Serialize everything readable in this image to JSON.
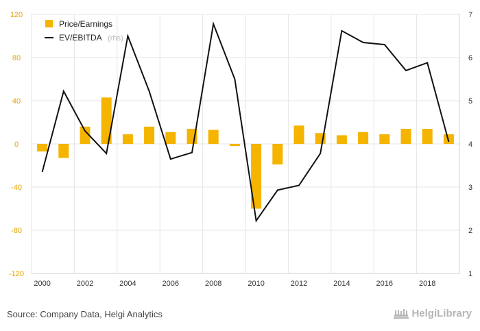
{
  "chart_data": {
    "type": "bar+line",
    "x": [
      2000,
      2001,
      2002,
      2003,
      2004,
      2005,
      2006,
      2007,
      2008,
      2009,
      2010,
      2011,
      2012,
      2013,
      2014,
      2015,
      2016,
      2017,
      2018,
      2019
    ],
    "x_tick_labels": [
      "2000",
      "2002",
      "2004",
      "2006",
      "2008",
      "2010",
      "2012",
      "2014",
      "2016",
      "2018"
    ],
    "series": [
      {
        "name": "Price/Earnings",
        "type": "bar",
        "axis": "left",
        "color": "#f5b400",
        "values": [
          -7,
          -13,
          16,
          43,
          9,
          16,
          11,
          14,
          13,
          -2,
          -60,
          -19,
          17,
          10,
          8,
          11,
          9,
          14,
          14,
          9
        ]
      },
      {
        "name": "EV/EBITDA",
        "name_suffix": "(rhs)",
        "type": "line",
        "axis": "right",
        "color": "#111111",
        "values": [
          3.35,
          5.22,
          4.3,
          3.78,
          6.5,
          5.22,
          3.65,
          3.8,
          6.78,
          5.5,
          2.22,
          2.93,
          3.04,
          3.78,
          6.62,
          6.35,
          6.3,
          5.7,
          5.88,
          4.05
        ]
      }
    ],
    "y_left": {
      "ylim": [
        -120,
        120
      ],
      "ticks": [
        "120",
        "80",
        "40",
        "0",
        "-40",
        "-80",
        "-120"
      ]
    },
    "y_right": {
      "ylim": [
        1,
        7
      ],
      "ticks": [
        "7",
        "6",
        "5",
        "4",
        "3",
        "2",
        "1"
      ]
    },
    "grid": true,
    "legend": "top-left"
  },
  "footer": {
    "source": "Source: Company Data, Helgi Analytics",
    "brand": "HelgiLibrary"
  },
  "colors": {
    "bar": "#f5b400",
    "line": "#111111",
    "left_axis_text": "#e8a200",
    "grid": "#e6e6e6"
  }
}
